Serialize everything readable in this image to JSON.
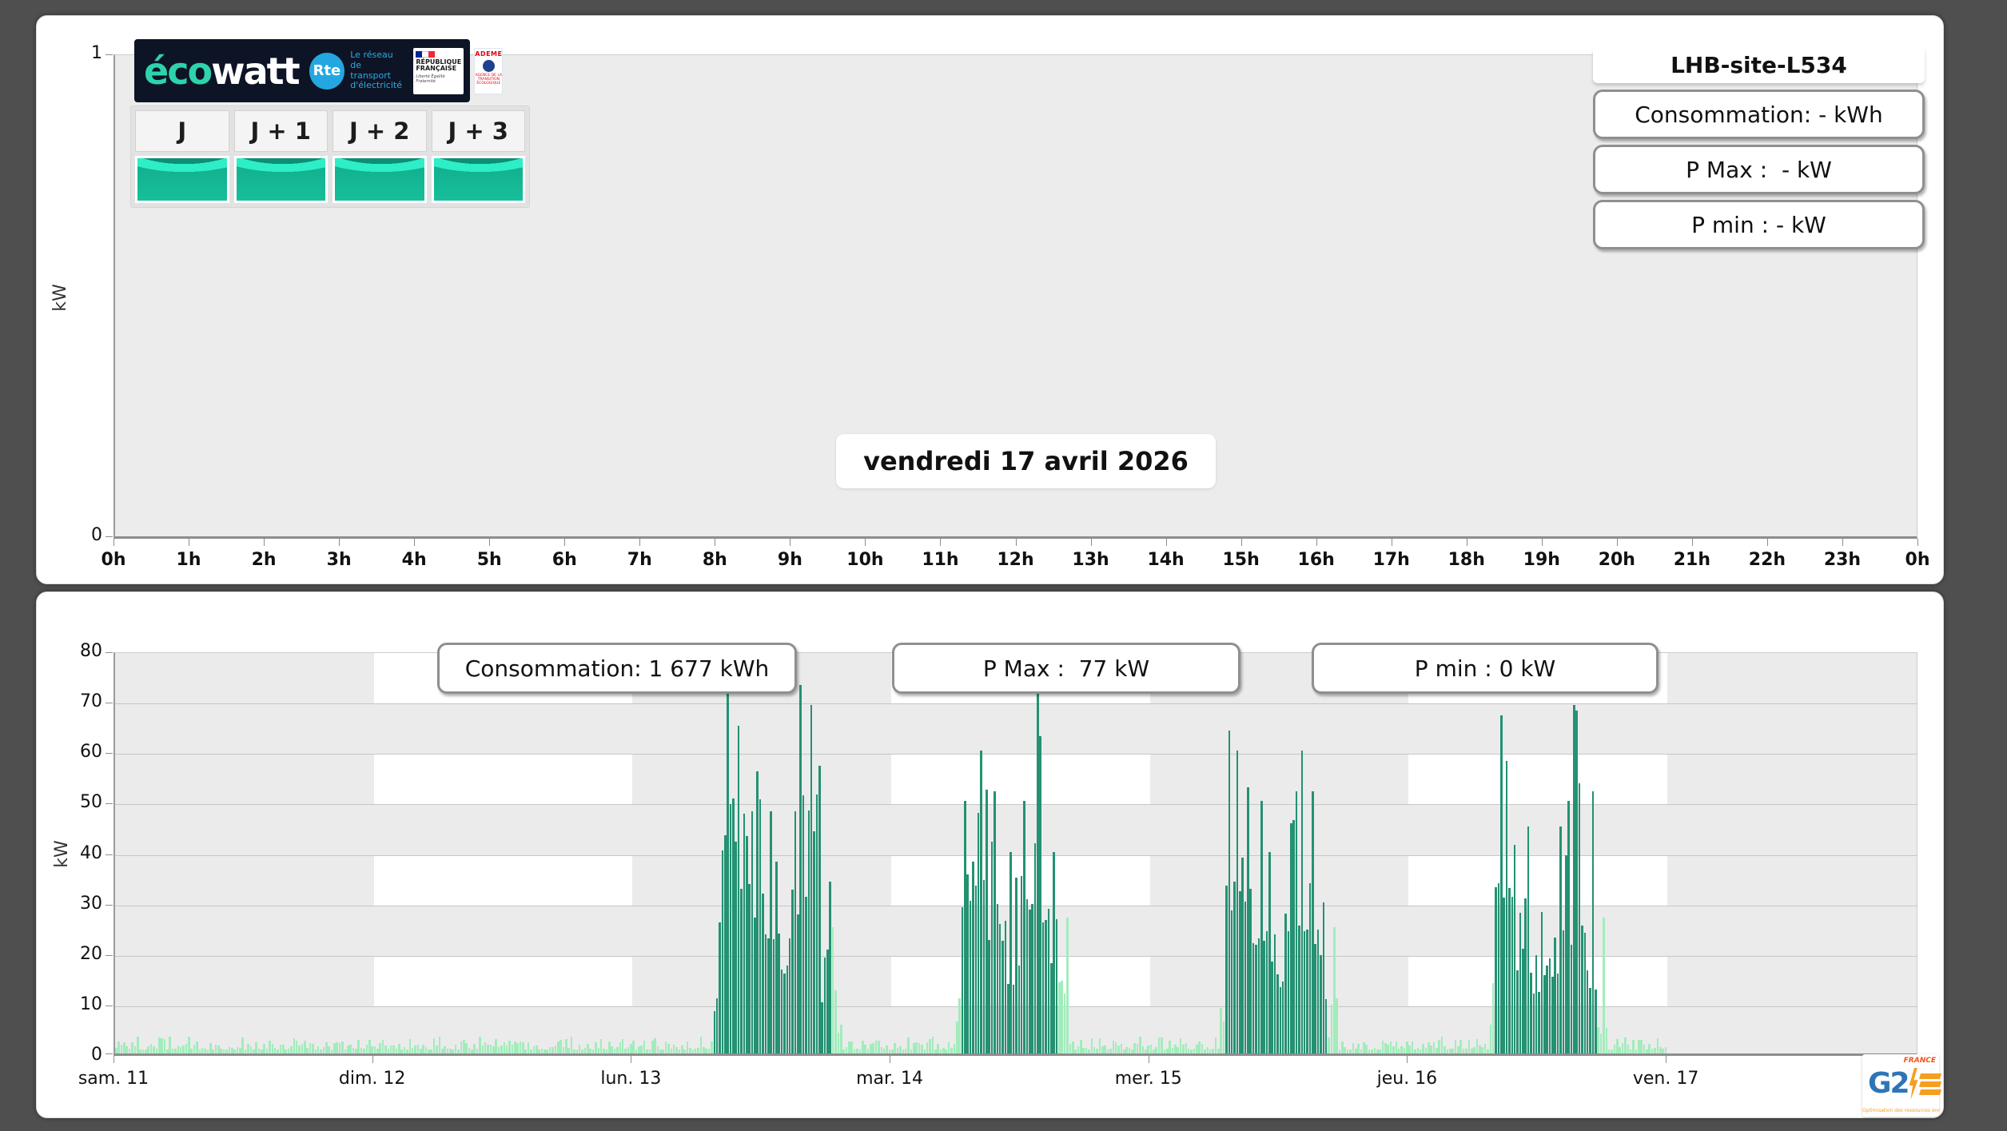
{
  "branding": {
    "ecowatt": {
      "eco": "éco",
      "watt": "watt"
    },
    "rte": {
      "abbr": "Rte",
      "tagline_lines": [
        "Le réseau",
        "de transport",
        "d'électricité"
      ]
    },
    "republique": {
      "line1": "RÉPUBLIQUE",
      "line2": "FRANÇAISE",
      "motto": "Liberté Égalité Fraternité"
    },
    "ademe": {
      "name": "ADEME",
      "tagline": "AGENCE DE LA TRANSITION ÉCOLOGIQUE"
    },
    "g2e": {
      "g2": "G2",
      "country": "FRANCE",
      "tagline": "Optimisation des ressources énergétiques"
    }
  },
  "day_selector": {
    "buttons": [
      {
        "label": "J"
      },
      {
        "label": "J + 1"
      },
      {
        "label": "J + 2"
      },
      {
        "label": "J + 3"
      }
    ]
  },
  "site": {
    "title": "LHB-site-L534"
  },
  "top_stats": [
    {
      "label": "Consommation: - kWh"
    },
    {
      "label": "P Max :  - kW"
    },
    {
      "label": "P min : - kW"
    }
  ],
  "bottom_stats": [
    {
      "label": "Consommation: 1 677 kWh"
    },
    {
      "label": "P Max :  77 kW"
    },
    {
      "label": "P min : 0 kW"
    }
  ],
  "chart_data": [
    {
      "id": "day-chart",
      "type": "bar",
      "title": "vendredi 17 avril 2026",
      "xlabel": "",
      "ylabel": "kW",
      "ylim": [
        0,
        1
      ],
      "y_ticks": [
        0,
        1
      ],
      "x_ticks": [
        "0h",
        "1h",
        "2h",
        "3h",
        "4h",
        "5h",
        "6h",
        "7h",
        "8h",
        "9h",
        "10h",
        "11h",
        "12h",
        "13h",
        "14h",
        "15h",
        "16h",
        "17h",
        "18h",
        "19h",
        "20h",
        "21h",
        "22h",
        "23h",
        "0h"
      ],
      "grid": false,
      "series": [],
      "summary": {
        "consumption_kwh": null,
        "p_max_kw": null,
        "p_min_kw": null
      }
    },
    {
      "id": "week-chart",
      "type": "bar",
      "title": "",
      "xlabel": "",
      "ylabel": "kW",
      "ylim": [
        0,
        80
      ],
      "y_ticks": [
        0,
        10,
        20,
        30,
        40,
        50,
        60,
        70,
        80
      ],
      "categories": [
        "sam. 11",
        "dim. 12",
        "lun. 13",
        "mar. 14",
        "mer. 15",
        "jeu. 16",
        "ven. 17"
      ],
      "axis_total_hours": 167.35,
      "data_hours": 144,
      "slot_hours": 0.25,
      "summary": {
        "consumption_kwh": "1 677",
        "p_max_kw": 77,
        "p_min_kw": 0
      },
      "colors": {
        "dark": "#249173",
        "light": "#a2ecbc"
      },
      "checkerboard": {
        "bg": "#ebebeb",
        "cell": "#ffffff",
        "white_bands_kw": [
          [
            10,
            20
          ],
          [
            30,
            40
          ],
          [
            50,
            60
          ],
          [
            70,
            80
          ]
        ],
        "white_day_columns": [
          1,
          3,
          5
        ]
      },
      "envelope_segments": [
        [
          0,
          48,
          0.8,
          3.4,
          0
        ],
        [
          48,
          55.5,
          0.8,
          3.4,
          0
        ],
        [
          55.5,
          56.2,
          6,
          26,
          1
        ],
        [
          56.2,
          57.5,
          40,
          73,
          1
        ],
        [
          57.5,
          58.5,
          32,
          65,
          1
        ],
        [
          58.5,
          60,
          26,
          56,
          1
        ],
        [
          60,
          61,
          20,
          48,
          1
        ],
        [
          61,
          62.5,
          14,
          38,
          1
        ],
        [
          62.5,
          63.5,
          20,
          48,
          1
        ],
        [
          63.5,
          64.5,
          24,
          73,
          1
        ],
        [
          64.5,
          65.5,
          18,
          69,
          1
        ],
        [
          65.5,
          66.5,
          10,
          34,
          1
        ],
        [
          66.5,
          67.6,
          3,
          25,
          0
        ],
        [
          67.6,
          78,
          0.8,
          3.4,
          0
        ],
        [
          78,
          78.5,
          4,
          11,
          0
        ],
        [
          78.5,
          79.5,
          28,
          50,
          1
        ],
        [
          79.5,
          81,
          32,
          60,
          1
        ],
        [
          81,
          82.5,
          22,
          52,
          1
        ],
        [
          82.5,
          84,
          13,
          40,
          1
        ],
        [
          84,
          85.5,
          22,
          50,
          1
        ],
        [
          85.5,
          86.5,
          26,
          77,
          1
        ],
        [
          86.5,
          87.5,
          12,
          40,
          1
        ],
        [
          87.5,
          88.6,
          3,
          27,
          0
        ],
        [
          88.6,
          102.5,
          0.8,
          3.4,
          0
        ],
        [
          102.5,
          103,
          3,
          9,
          0
        ],
        [
          103,
          104,
          28,
          64,
          1
        ],
        [
          104,
          105.5,
          26,
          60,
          1
        ],
        [
          105.5,
          107,
          20,
          50,
          1
        ],
        [
          107,
          108.5,
          13,
          40,
          1
        ],
        [
          108.5,
          110,
          22,
          52,
          1
        ],
        [
          110,
          111,
          24,
          60,
          1
        ],
        [
          111,
          112,
          18,
          52,
          1
        ],
        [
          112,
          112.6,
          8,
          30,
          1
        ],
        [
          112.6,
          113.6,
          3,
          25,
          0
        ],
        [
          113.6,
          127.5,
          0.8,
          3.4,
          0
        ],
        [
          127.5,
          128,
          4,
          14,
          0
        ],
        [
          128,
          129,
          30,
          67,
          1
        ],
        [
          129,
          130,
          24,
          58,
          1
        ],
        [
          130,
          131.5,
          16,
          45,
          1
        ],
        [
          131.5,
          133,
          8,
          28,
          1
        ],
        [
          133,
          134.5,
          15,
          45,
          1
        ],
        [
          134.5,
          135.5,
          20,
          69,
          1
        ],
        [
          135.5,
          136.5,
          20,
          68,
          1
        ],
        [
          136.5,
          137.5,
          12,
          52,
          1
        ],
        [
          137.5,
          138.6,
          4,
          27,
          0
        ],
        [
          138.6,
          144,
          0.8,
          3.2,
          0
        ]
      ]
    }
  ]
}
